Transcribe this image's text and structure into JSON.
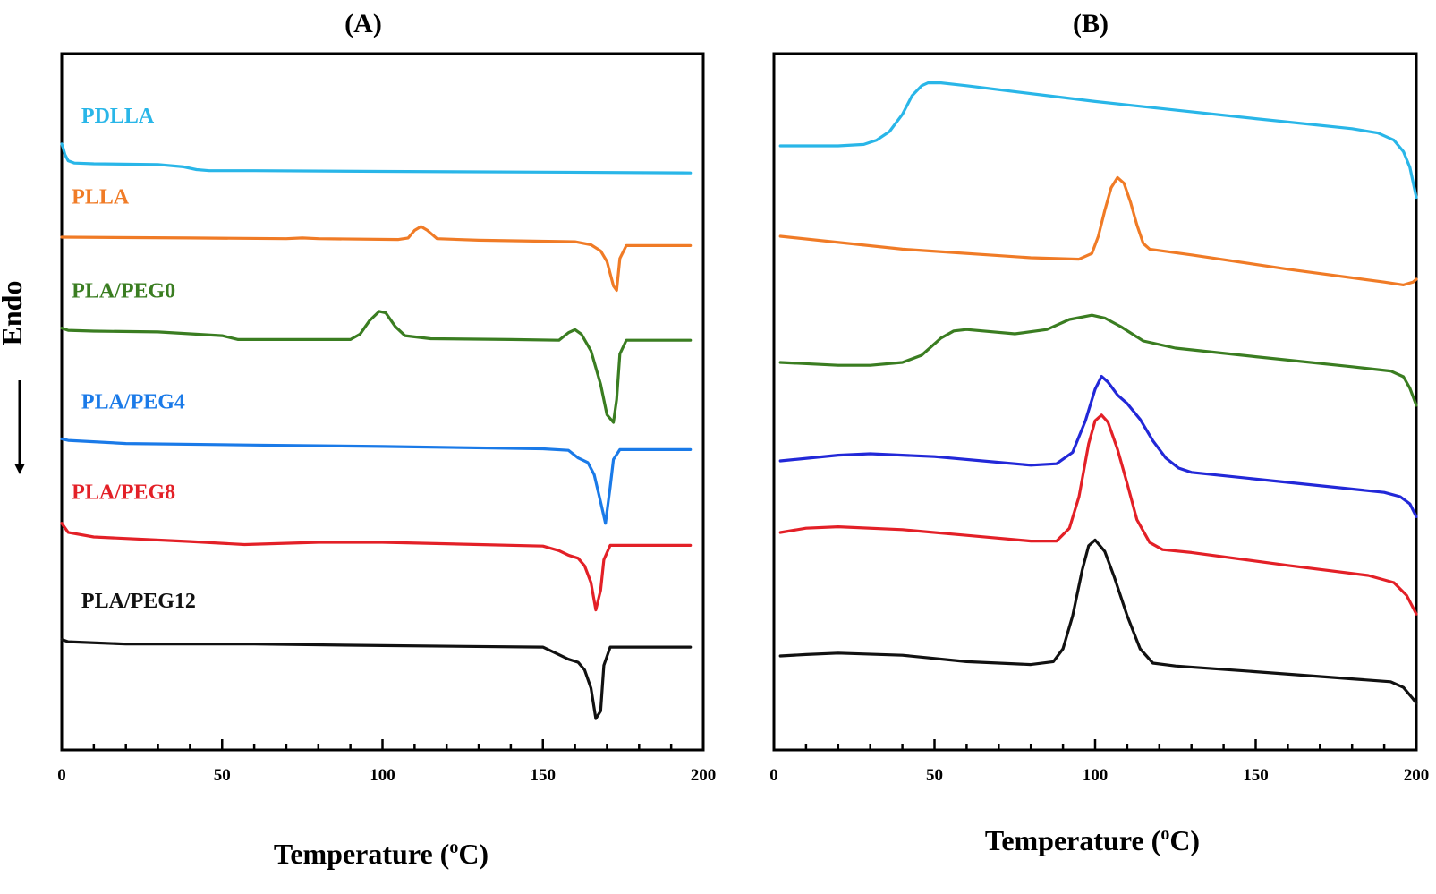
{
  "chart_data": [
    {
      "type": "line",
      "panel": "(A)",
      "title": "(A)",
      "xlabel_main": "Temperature (",
      "xlabel_sup": "o",
      "xlabel_end": "C)",
      "ylabel": "Endo",
      "xlim": [
        0,
        200
      ],
      "xticks": [
        "0",
        "50",
        "100",
        "150",
        "200"
      ],
      "tick_values": [
        0,
        50,
        100,
        150,
        200
      ],
      "grid": false,
      "series": [
        {
          "name": "PDLLA",
          "color": "#29b6e8",
          "label_x": 5,
          "label_offset": 1.4,
          "points": [
            [
              0,
              1.3
            ],
            [
              0.5,
              1.0
            ],
            [
              1,
              0.6
            ],
            [
              2,
              0.2
            ],
            [
              4,
              0.05
            ],
            [
              10,
              0
            ],
            [
              30,
              -0.05
            ],
            [
              38,
              -0.2
            ],
            [
              42,
              -0.38
            ],
            [
              46,
              -0.45
            ],
            [
              60,
              -0.45
            ],
            [
              100,
              -0.5
            ],
            [
              150,
              -0.55
            ],
            [
              196,
              -0.6
            ]
          ]
        },
        {
          "name": "PLLA",
          "color": "#f07b26",
          "label_x": 2,
          "label_offset": 2.2,
          "points": [
            [
              0,
              0
            ],
            [
              40,
              -0.05
            ],
            [
              70,
              -0.1
            ],
            [
              75,
              -0.05
            ],
            [
              80,
              -0.1
            ],
            [
              105,
              -0.15
            ],
            [
              108,
              -0.05
            ],
            [
              110,
              0.45
            ],
            [
              112,
              0.7
            ],
            [
              114,
              0.45
            ],
            [
              117,
              -0.1
            ],
            [
              130,
              -0.2
            ],
            [
              160,
              -0.3
            ],
            [
              165,
              -0.5
            ],
            [
              168,
              -0.9
            ],
            [
              170,
              -1.6
            ],
            [
              172,
              -3.2
            ],
            [
              173,
              -3.5
            ],
            [
              174,
              -1.4
            ],
            [
              176,
              -0.55
            ],
            [
              185,
              -0.55
            ],
            [
              196,
              -0.55
            ]
          ]
        },
        {
          "name": "PLA/PEG0",
          "color": "#3a7d21",
          "label_x": 2,
          "label_offset": 2.0,
          "points": [
            [
              0,
              0.2
            ],
            [
              2,
              0.05
            ],
            [
              10,
              0
            ],
            [
              30,
              -0.05
            ],
            [
              50,
              -0.3
            ],
            [
              55,
              -0.55
            ],
            [
              70,
              -0.55
            ],
            [
              90,
              -0.55
            ],
            [
              93,
              -0.2
            ],
            [
              96,
              0.7
            ],
            [
              99,
              1.3
            ],
            [
              101,
              1.2
            ],
            [
              104,
              0.3
            ],
            [
              107,
              -0.3
            ],
            [
              115,
              -0.5
            ],
            [
              140,
              -0.55
            ],
            [
              155,
              -0.6
            ],
            [
              158,
              -0.1
            ],
            [
              160,
              0.1
            ],
            [
              162,
              -0.2
            ],
            [
              165,
              -1.3
            ],
            [
              168,
              -3.5
            ],
            [
              170,
              -5.5
            ],
            [
              172,
              -6.0
            ],
            [
              173,
              -4.5
            ],
            [
              174,
              -1.5
            ],
            [
              176,
              -0.6
            ],
            [
              185,
              -0.6
            ],
            [
              196,
              -0.6
            ]
          ]
        },
        {
          "name": "PLA/PEG4",
          "color": "#1a7ae8",
          "label_x": 5,
          "label_offset": 2.0,
          "points": [
            [
              0,
              0.15
            ],
            [
              2,
              0.05
            ],
            [
              20,
              -0.15
            ],
            [
              60,
              -0.25
            ],
            [
              100,
              -0.35
            ],
            [
              150,
              -0.5
            ],
            [
              158,
              -0.6
            ],
            [
              161,
              -1.1
            ],
            [
              164,
              -1.4
            ],
            [
              166,
              -2.2
            ],
            [
              168,
              -4
            ],
            [
              169.5,
              -5.4
            ],
            [
              171,
              -3
            ],
            [
              172,
              -1.2
            ],
            [
              174,
              -0.55
            ],
            [
              185,
              -0.55
            ],
            [
              196,
              -0.55
            ]
          ]
        },
        {
          "name": "PLA/PEG8",
          "color": "#e32027",
          "label_x": 2,
          "label_offset": 1.6,
          "points": [
            [
              0,
              0.9
            ],
            [
              2,
              0.3
            ],
            [
              10,
              0
            ],
            [
              40,
              -0.3
            ],
            [
              57,
              -0.5
            ],
            [
              80,
              -0.35
            ],
            [
              100,
              -0.35
            ],
            [
              130,
              -0.5
            ],
            [
              150,
              -0.6
            ],
            [
              155,
              -0.9
            ],
            [
              158,
              -1.2
            ],
            [
              161,
              -1.4
            ],
            [
              163,
              -1.9
            ],
            [
              165,
              -3
            ],
            [
              166.5,
              -4.8
            ],
            [
              168,
              -3.5
            ],
            [
              169,
              -1.5
            ],
            [
              171,
              -0.55
            ],
            [
              185,
              -0.55
            ],
            [
              196,
              -0.55
            ]
          ]
        },
        {
          "name": "PLA/PEG12",
          "color": "#111111",
          "label_x": 5,
          "label_offset": 2.1,
          "points": [
            [
              0,
              0.2
            ],
            [
              2,
              0.05
            ],
            [
              20,
              -0.1
            ],
            [
              60,
              -0.1
            ],
            [
              100,
              -0.2
            ],
            [
              150,
              -0.3
            ],
            [
              155,
              -0.8
            ],
            [
              158,
              -1.1
            ],
            [
              161,
              -1.3
            ],
            [
              163,
              -1.8
            ],
            [
              165,
              -3
            ],
            [
              166.5,
              -5.0
            ],
            [
              168,
              -4.5
            ],
            [
              169,
              -1.5
            ],
            [
              171,
              -0.3
            ],
            [
              185,
              -0.3
            ],
            [
              196,
              -0.3
            ]
          ]
        }
      ]
    },
    {
      "type": "line",
      "panel": "(B)",
      "title": "(B)",
      "xlabel_main": "Temperature (",
      "xlabel_sup": "o",
      "xlabel_end": "C)",
      "xlim": [
        0,
        200
      ],
      "xticks": [
        "0",
        "50",
        "100",
        "150",
        "200"
      ],
      "tick_values": [
        0,
        50,
        100,
        150,
        200
      ],
      "grid": false,
      "series": [
        {
          "name": "PDLLA",
          "color": "#29b6e8",
          "points": [
            [
              2,
              0
            ],
            [
              20,
              0
            ],
            [
              28,
              0.1
            ],
            [
              32,
              0.4
            ],
            [
              36,
              1.0
            ],
            [
              40,
              2.2
            ],
            [
              43,
              3.5
            ],
            [
              46,
              4.2
            ],
            [
              48,
              4.4
            ],
            [
              52,
              4.4
            ],
            [
              60,
              4.2
            ],
            [
              100,
              3.1
            ],
            [
              150,
              1.9
            ],
            [
              180,
              1.2
            ],
            [
              188,
              0.9
            ],
            [
              193,
              0.4
            ],
            [
              196,
              -0.4
            ],
            [
              198,
              -1.5
            ],
            [
              200,
              -3.6
            ]
          ]
        },
        {
          "name": "PLLA",
          "color": "#f07b26",
          "points": [
            [
              2,
              0
            ],
            [
              40,
              -0.9
            ],
            [
              80,
              -1.5
            ],
            [
              95,
              -1.6
            ],
            [
              99,
              -1.2
            ],
            [
              101,
              0
            ],
            [
              103,
              1.8
            ],
            [
              105,
              3.4
            ],
            [
              107,
              4.1
            ],
            [
              109,
              3.7
            ],
            [
              111,
              2.4
            ],
            [
              113,
              0.8
            ],
            [
              115,
              -0.5
            ],
            [
              117,
              -0.9
            ],
            [
              130,
              -1.3
            ],
            [
              160,
              -2.3
            ],
            [
              190,
              -3.2
            ],
            [
              196,
              -3.4
            ],
            [
              199,
              -3.2
            ],
            [
              200,
              -3.0
            ]
          ]
        },
        {
          "name": "PLA/PEG0",
          "color": "#3a7d21",
          "points": [
            [
              2,
              0
            ],
            [
              20,
              -0.2
            ],
            [
              30,
              -0.2
            ],
            [
              40,
              0
            ],
            [
              46,
              0.5
            ],
            [
              52,
              1.7
            ],
            [
              56,
              2.2
            ],
            [
              60,
              2.3
            ],
            [
              75,
              2.0
            ],
            [
              85,
              2.3
            ],
            [
              92,
              3.0
            ],
            [
              99,
              3.3
            ],
            [
              103,
              3.1
            ],
            [
              108,
              2.5
            ],
            [
              115,
              1.5
            ],
            [
              125,
              1.0
            ],
            [
              150,
              0.4
            ],
            [
              180,
              -0.3
            ],
            [
              192,
              -0.6
            ],
            [
              196,
              -1.0
            ],
            [
              198,
              -1.8
            ],
            [
              200,
              -3.0
            ]
          ]
        },
        {
          "name": "PLA/PEG4",
          "color": "#1a7ae8",
          "stroke": "#2228d8",
          "points": [
            [
              2,
              0
            ],
            [
              20,
              0.4
            ],
            [
              30,
              0.5
            ],
            [
              50,
              0.3
            ],
            [
              70,
              -0.1
            ],
            [
              80,
              -0.3
            ],
            [
              88,
              -0.2
            ],
            [
              93,
              0.6
            ],
            [
              97,
              2.8
            ],
            [
              100,
              5.0
            ],
            [
              102,
              5.9
            ],
            [
              104,
              5.5
            ],
            [
              107,
              4.6
            ],
            [
              110,
              4.0
            ],
            [
              114,
              2.9
            ],
            [
              118,
              1.4
            ],
            [
              122,
              0.2
            ],
            [
              126,
              -0.5
            ],
            [
              130,
              -0.8
            ],
            [
              160,
              -1.5
            ],
            [
              190,
              -2.2
            ],
            [
              195,
              -2.5
            ],
            [
              198,
              -3.0
            ],
            [
              200,
              -3.9
            ]
          ]
        },
        {
          "name": "PLA/PEG8",
          "color": "#e32027",
          "points": [
            [
              2,
              0
            ],
            [
              10,
              0.3
            ],
            [
              20,
              0.4
            ],
            [
              40,
              0.2
            ],
            [
              60,
              -0.2
            ],
            [
              80,
              -0.6
            ],
            [
              88,
              -0.6
            ],
            [
              92,
              0.3
            ],
            [
              95,
              2.5
            ],
            [
              98,
              6.2
            ],
            [
              100,
              7.8
            ],
            [
              102,
              8.2
            ],
            [
              104,
              7.7
            ],
            [
              107,
              5.8
            ],
            [
              110,
              3.4
            ],
            [
              113,
              0.9
            ],
            [
              117,
              -0.7
            ],
            [
              121,
              -1.2
            ],
            [
              130,
              -1.4
            ],
            [
              160,
              -2.3
            ],
            [
              185,
              -3.0
            ],
            [
              193,
              -3.5
            ],
            [
              197,
              -4.4
            ],
            [
              200,
              -5.7
            ]
          ]
        },
        {
          "name": "PLA/PEG12",
          "color": "#111111",
          "points": [
            [
              2,
              0
            ],
            [
              10,
              0.1
            ],
            [
              20,
              0.2
            ],
            [
              40,
              0.05
            ],
            [
              60,
              -0.4
            ],
            [
              80,
              -0.6
            ],
            [
              87,
              -0.4
            ],
            [
              90,
              0.5
            ],
            [
              93,
              2.8
            ],
            [
              96,
              6.0
            ],
            [
              98,
              7.7
            ],
            [
              100,
              8.1
            ],
            [
              103,
              7.3
            ],
            [
              106,
              5.5
            ],
            [
              110,
              2.8
            ],
            [
              114,
              0.5
            ],
            [
              118,
              -0.5
            ],
            [
              125,
              -0.7
            ],
            [
              150,
              -1.1
            ],
            [
              180,
              -1.6
            ],
            [
              192,
              -1.8
            ],
            [
              196,
              -2.2
            ],
            [
              199,
              -3.0
            ],
            [
              200,
              -3.3
            ]
          ]
        }
      ]
    }
  ]
}
